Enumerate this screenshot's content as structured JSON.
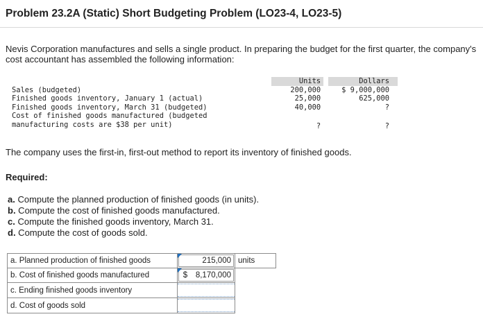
{
  "title": "Problem 23.2A (Static) Short Budgeting Problem (LO23-4, LO23-5)",
  "intro": "Nevis Corporation manufactures and sells a single product. In preparing the budget for the first quarter, the company's cost accountant has assembled the following information:",
  "info_table": {
    "headers": {
      "units": "Units",
      "dollars": "Dollars"
    },
    "rows": [
      {
        "label": "Sales (budgeted)",
        "units": "200,000",
        "dollars": "$ 9,000,000"
      },
      {
        "label": "Finished goods inventory, January 1 (actual)",
        "units": "25,000",
        "dollars": "625,000"
      },
      {
        "label": "Finished goods inventory, March 31 (budgeted)",
        "units": "40,000",
        "dollars": "?"
      },
      {
        "label": "Cost of finished goods manufactured (budgeted",
        "units": "",
        "dollars": ""
      },
      {
        "label": "manufacturing costs are $38 per unit)",
        "units": "?",
        "dollars": "?"
      }
    ]
  },
  "method_text": "The company uses the first-in, first-out method to report its inventory of finished goods.",
  "required_heading": "Required:",
  "requirements": [
    {
      "letter": "a.",
      "text": " Compute the planned production of finished goods (in units)."
    },
    {
      "letter": "b.",
      "text": " Compute the cost of finished goods manufactured."
    },
    {
      "letter": "c.",
      "text": " Compute the finished goods inventory, March 31."
    },
    {
      "letter": "d.",
      "text": " Compute the cost of goods sold."
    }
  ],
  "answers": [
    {
      "label": "a. Planned production of finished goods",
      "symbol": "",
      "value": "215,000",
      "unit": "units"
    },
    {
      "label": "b. Cost of finished goods manufactured",
      "symbol": "$",
      "value": "8,170,000",
      "unit": ""
    },
    {
      "label": "c. Ending finished goods inventory",
      "symbol": "",
      "value": "",
      "unit": ""
    },
    {
      "label": "d. Cost of goods sold",
      "symbol": "",
      "value": "",
      "unit": ""
    }
  ]
}
